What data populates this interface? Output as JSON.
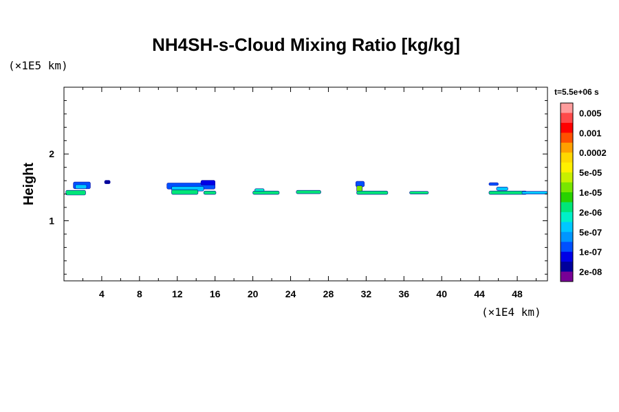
{
  "chart_data": {
    "type": "heatmap",
    "title": "NH4SH-s-Cloud Mixing Ratio [kg/kg]",
    "time_label": "t=5.5e+06 s",
    "xlabel": "",
    "x_unit": "(×1E4 km)",
    "ylabel": "Height",
    "y_unit": "(×1E5 km)",
    "xlim": [
      0,
      51.2
    ],
    "ylim": [
      0.1,
      3.0
    ],
    "x_ticks": [
      "4",
      "8",
      "12",
      "16",
      "20",
      "24",
      "28",
      "32",
      "36",
      "40",
      "44",
      "48"
    ],
    "y_ticks": [
      "1",
      "2"
    ],
    "grid": false,
    "colorbar": {
      "labels": [
        "0.005",
        "0.001",
        "0.0002",
        "5e-05",
        "1e-05",
        "2e-06",
        "5e-07",
        "1e-07",
        "2e-08"
      ],
      "colors": [
        "#ff9d9d",
        "#ff4a4a",
        "#ff0000",
        "#ff5000",
        "#ffa000",
        "#ffd700",
        "#fff000",
        "#c8f000",
        "#78e600",
        "#28d200",
        "#00e678",
        "#00f0c8",
        "#00c8ff",
        "#0096ff",
        "#0050ff",
        "#0000e6",
        "#00009b",
        "#780096"
      ]
    },
    "cloud_patches": [
      {
        "x0": 0.2,
        "x1": 2.3,
        "y": 1.42,
        "h": 0.07,
        "level": "2e-06",
        "color": "#00e678"
      },
      {
        "x0": 1.0,
        "x1": 2.8,
        "y": 1.53,
        "h": 0.1,
        "level": "1e-07",
        "color": "#0050ff"
      },
      {
        "x0": 1.2,
        "x1": 2.4,
        "y": 1.51,
        "h": 0.06,
        "level": "5e-07",
        "color": "#00c8ff"
      },
      {
        "x0": 4.3,
        "x1": 4.9,
        "y": 1.58,
        "h": 0.05,
        "level": "2e-08",
        "color": "#00009b"
      },
      {
        "x0": 10.9,
        "x1": 16.0,
        "y": 1.52,
        "h": 0.09,
        "level": "1e-07",
        "color": "#0050ff"
      },
      {
        "x0": 11.4,
        "x1": 14.8,
        "y": 1.48,
        "h": 0.07,
        "level": "5e-07",
        "color": "#00c8ff"
      },
      {
        "x0": 11.4,
        "x1": 14.2,
        "y": 1.43,
        "h": 0.07,
        "level": "2e-06",
        "color": "#00e678"
      },
      {
        "x0": 14.5,
        "x1": 16.0,
        "y": 1.57,
        "h": 0.07,
        "level": "1e-07",
        "color": "#0000e6"
      },
      {
        "x0": 14.8,
        "x1": 16.1,
        "y": 1.42,
        "h": 0.05,
        "level": "2e-06",
        "color": "#00e678"
      },
      {
        "x0": 20.0,
        "x1": 22.8,
        "y": 1.42,
        "h": 0.05,
        "level": "2e-06",
        "color": "#00e678"
      },
      {
        "x0": 20.2,
        "x1": 21.2,
        "y": 1.46,
        "h": 0.04,
        "level": "5e-07",
        "color": "#00f0c8"
      },
      {
        "x0": 24.6,
        "x1": 27.2,
        "y": 1.43,
        "h": 0.05,
        "level": "2e-06",
        "color": "#00e678"
      },
      {
        "x0": 30.9,
        "x1": 31.8,
        "y": 1.55,
        "h": 0.08,
        "level": "1e-07",
        "color": "#0050ff"
      },
      {
        "x0": 31.0,
        "x1": 31.6,
        "y": 1.48,
        "h": 0.09,
        "level": "5e-05",
        "color": "#78e600"
      },
      {
        "x0": 31.0,
        "x1": 34.3,
        "y": 1.42,
        "h": 0.05,
        "level": "2e-06",
        "color": "#00e678"
      },
      {
        "x0": 36.6,
        "x1": 38.6,
        "y": 1.42,
        "h": 0.04,
        "level": "2e-06",
        "color": "#00e678"
      },
      {
        "x0": 45.0,
        "x1": 46.0,
        "y": 1.55,
        "h": 0.04,
        "level": "1e-07",
        "color": "#0050ff"
      },
      {
        "x0": 45.8,
        "x1": 47.0,
        "y": 1.48,
        "h": 0.05,
        "level": "5e-07",
        "color": "#00c8ff"
      },
      {
        "x0": 45.0,
        "x1": 49.0,
        "y": 1.42,
        "h": 0.05,
        "level": "2e-06",
        "color": "#00e678"
      },
      {
        "x0": 48.5,
        "x1": 51.2,
        "y": 1.42,
        "h": 0.04,
        "level": "5e-07",
        "color": "#00c8ff"
      }
    ]
  }
}
